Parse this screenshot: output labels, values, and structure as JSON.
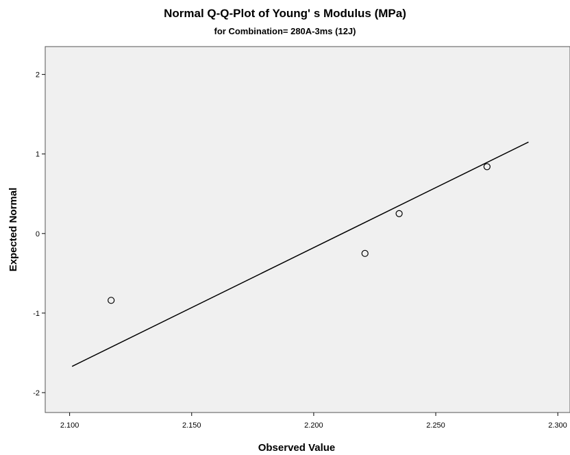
{
  "chart_data": {
    "type": "scatter",
    "title": "Normal Q-Q-Plot of Young' s Modulus (MPa)",
    "subtitle": "for Combination= 280A-3ms (12J)",
    "xlabel": "Observed Value",
    "ylabel": "Expected Normal",
    "xlim": [
      2.09,
      2.305
    ],
    "ylim": [
      -2.25,
      2.35
    ],
    "x_ticks": [
      2.1,
      2.15,
      2.2,
      2.25,
      2.3
    ],
    "x_tick_labels": [
      "2.100",
      "2.150",
      "2.200",
      "2.250",
      "2.300"
    ],
    "y_ticks": [
      2,
      1,
      0,
      -1,
      -2
    ],
    "y_tick_labels": [
      "2",
      "1",
      "0",
      "-1",
      "-2"
    ],
    "grid": false,
    "plot_background": "#f0f0f0",
    "points": [
      {
        "x": 2.117,
        "y": -0.84
      },
      {
        "x": 2.221,
        "y": -0.25
      },
      {
        "x": 2.235,
        "y": 0.25
      },
      {
        "x": 2.271,
        "y": 0.84
      }
    ],
    "reference_line": {
      "x1": 2.101,
      "y1": -1.67,
      "x2": 2.288,
      "y2": 1.15
    }
  }
}
